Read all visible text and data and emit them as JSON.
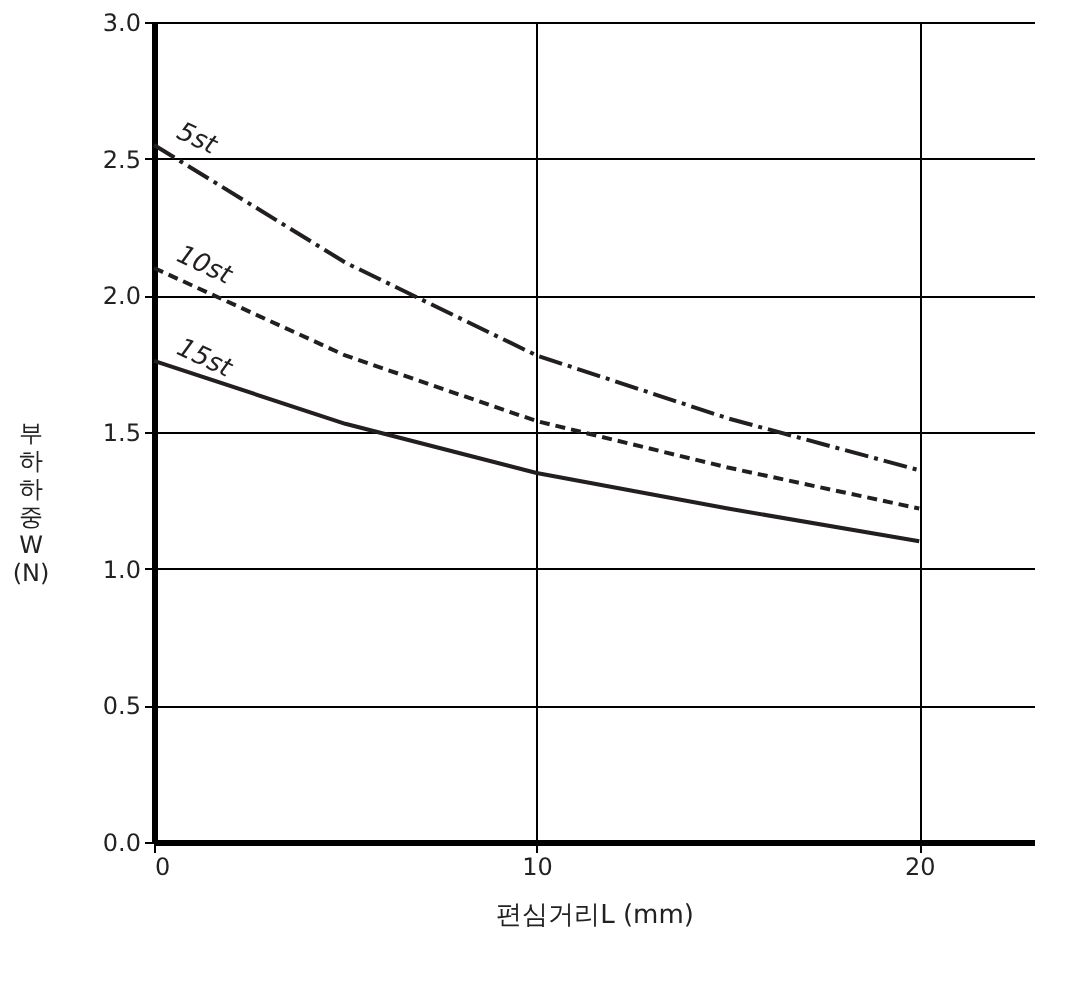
{
  "chart_data": {
    "type": "line",
    "xlabel": "편심거리L (mm)",
    "ylabel": "부하하중 W (N)",
    "x": [
      0,
      5,
      10,
      15,
      20
    ],
    "series": [
      {
        "name": "5st",
        "color": "#231f20",
        "line_style": "dashdot",
        "values": [
          2.55,
          2.12,
          1.78,
          1.55,
          1.36
        ]
      },
      {
        "name": "10st",
        "color": "#231f20",
        "line_style": "dashed",
        "values": [
          2.1,
          1.78,
          1.54,
          1.37,
          1.22
        ]
      },
      {
        "name": "15st",
        "color": "#231f20",
        "line_style": "solid",
        "values": [
          1.76,
          1.53,
          1.35,
          1.22,
          1.1
        ]
      }
    ],
    "xlim": [
      0,
      23
    ],
    "xticks": [
      0,
      10,
      20
    ],
    "ylim": [
      0,
      3.0
    ],
    "yticks": [
      {
        "value": 0,
        "label": "0.0"
      },
      0.5,
      {
        "value": 1,
        "label": "1.0"
      },
      1.5,
      {
        "value": 2,
        "label": "2.0"
      },
      2.5,
      {
        "value": 3,
        "label": "3.0"
      }
    ],
    "grid": true,
    "marker": "none"
  }
}
